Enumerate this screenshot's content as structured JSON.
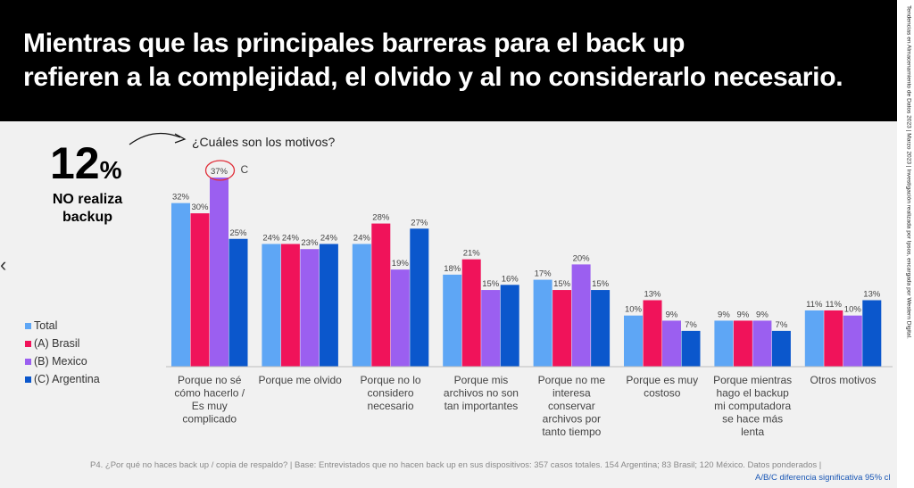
{
  "header": {
    "title_line1": "Mientras que las principales barreras para el back up",
    "title_line2": "refieren a la complejidad, el olvido y al no considerarlo necesario."
  },
  "side_note": "Tendencias en Almacenamiento de Datos 2023 | Marzo 2023 | Investigación realizada por Ipsos, encargada por Western Digital.",
  "nav": {
    "prev_glyph": "‹"
  },
  "highlight": {
    "big_value": "12",
    "big_unit": "%",
    "label_line1": "NO realiza",
    "label_line2": "backup"
  },
  "question": "¿Cuáles son los motivos?",
  "footnote": "P4. ¿Por qué no haces back up / copia de respaldo? | Base: Entrevistados que no hacen back up en sus dispositivos: 357 casos totales. 154 Argentina; 83 Brasil; 120 México. Datos ponderados |",
  "significance_note": "A/B/C diferencia significativa 95% cl",
  "colors": {
    "total": "#5ea6f5",
    "brasil": "#f0135a",
    "mexico": "#9b5ff0",
    "argentina": "#0b57cc",
    "circle": "#e0303a"
  },
  "chart_data": {
    "type": "bar",
    "title": "¿Cuáles son los motivos?",
    "categories": [
      [
        "Porque no sé",
        "cómo hacerlo /",
        "Es muy",
        "complicado"
      ],
      [
        "Porque me olvido"
      ],
      [
        "Porque no lo",
        "considero",
        "necesario"
      ],
      [
        "Porque mis",
        "archivos no son",
        "tan importantes"
      ],
      [
        "Porque no me",
        "interesa",
        "conservar",
        "archivos por",
        "tanto tiempo"
      ],
      [
        "Porque es muy",
        "costoso"
      ],
      [
        "Porque mientras",
        "hago el backup",
        "mi computadora",
        "se hace más",
        "lenta"
      ],
      [
        "Otros motivos"
      ]
    ],
    "series": [
      {
        "name": "Total",
        "color": "#5ea6f5",
        "values": [
          32,
          24,
          24,
          18,
          17,
          10,
          9,
          11
        ]
      },
      {
        "name": "(A) Brasil",
        "color": "#f0135a",
        "values": [
          30,
          24,
          28,
          21,
          15,
          13,
          9,
          11
        ]
      },
      {
        "name": "(B) Mexico",
        "color": "#9b5ff0",
        "values": [
          37,
          23,
          19,
          15,
          20,
          9,
          9,
          10
        ]
      },
      {
        "name": "(C) Argentina",
        "color": "#0b57cc",
        "values": [
          25,
          24,
          27,
          16,
          15,
          7,
          7,
          13
        ]
      }
    ],
    "value_suffix": "%",
    "annotations": [
      {
        "category_index": 0,
        "series_index": 2,
        "mark": "circle",
        "letter": "C"
      }
    ],
    "ylim": [
      0,
      37
    ],
    "legend_position": "left"
  }
}
